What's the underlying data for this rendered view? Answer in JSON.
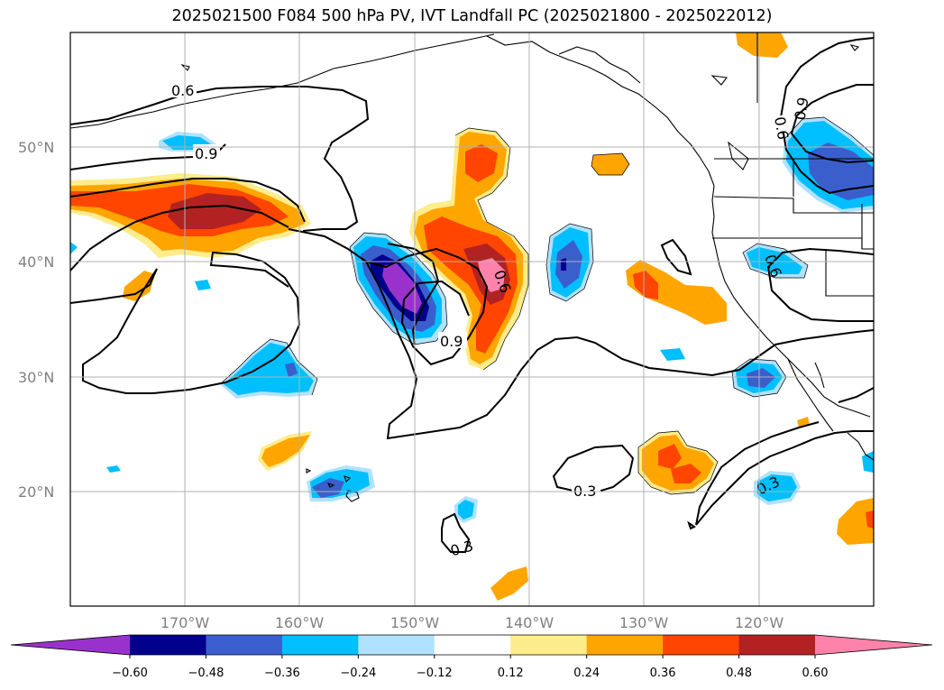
{
  "title": "2025021500 F084 500 hPa PV, IVT Landfall PC (2025021800 - 2025022012)",
  "lat_ticks": [
    "50°N",
    "40°N",
    "30°N",
    "20°N"
  ],
  "lon_ticks": [
    "170°W",
    "160°W",
    "150°W",
    "140°W",
    "130°W",
    "120°W"
  ],
  "colorbar": {
    "colors": [
      "#9932cc",
      "#00008b",
      "#3a5fcd",
      "#00bfff",
      "#b0e2ff",
      "#ffffff",
      "#ffec8b",
      "#ffa500",
      "#ff4500",
      "#b22222",
      "#ff82ab"
    ],
    "labels": [
      "−0.60",
      "−0.48",
      "−0.36",
      "−0.24",
      "−0.12",
      "0.12",
      "0.24",
      "0.36",
      "0.48",
      "0.60"
    ]
  },
  "contour_labels": [
    "0.6",
    "0.9",
    "0.6",
    "0.9",
    "0.6",
    "0.6",
    "0.9",
    "0.3",
    "0.3",
    "0.3"
  ]
}
